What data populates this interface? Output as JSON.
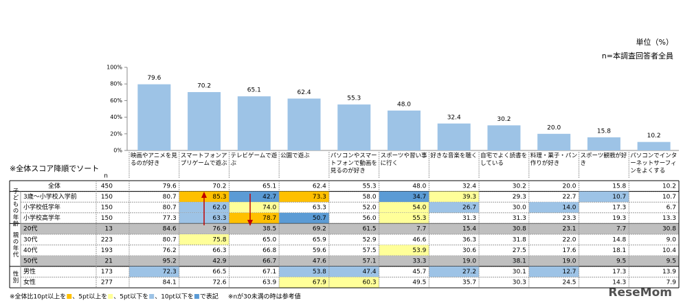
{
  "chart_data": {
    "type": "bar",
    "categories": [
      "映画やアニメを見るのが好き",
      "スマートフォンアプリゲームで遊ぶ",
      "テレビゲームで遊ぶ",
      "公園で遊ぶ",
      "パソコンやスマートフォンで動画を見るのが好き",
      "スポーツや習い事に行く",
      "好きな音楽を聴く",
      "自宅でよく読書をしている",
      "料理・菓子・パン作りが好き",
      "スポーツ観戦が好き",
      "パソコンでインターネットサーフィンをよくする"
    ],
    "values": [
      79.6,
      70.2,
      65.1,
      62.4,
      55.3,
      48.0,
      32.4,
      30.2,
      20.0,
      15.8,
      10.2
    ],
    "value_labels": [
      "79.6",
      "70.2",
      "65.1",
      "62.4",
      "55.3",
      "48.0",
      "32.4",
      "30.2",
      "20.0",
      "15.8",
      "10.2"
    ],
    "color": "#9dc3e6",
    "ylim": [
      0,
      100
    ],
    "yticks": [
      {
        "value": 0,
        "label": "0%"
      },
      {
        "value": 20,
        "label": "20%"
      },
      {
        "value": 40,
        "label": "40%"
      },
      {
        "value": 60,
        "label": "60%"
      },
      {
        "value": 80,
        "label": "80%"
      },
      {
        "value": 100,
        "label": "100%"
      }
    ]
  },
  "header": {
    "unit": "単位（%）",
    "base": "n=本調査回答者全員",
    "sort_note": "※全体スコア降順でソート",
    "n_label": "n"
  },
  "table": {
    "overall": {
      "label": "全体",
      "n": "450",
      "values": [
        "79.6",
        "70.2",
        "65.1",
        "62.4",
        "55.3",
        "48.0",
        "32.4",
        "30.2",
        "20.0",
        "15.8",
        "10.2"
      ]
    },
    "groups": [
      {
        "label": "子どもの年齢",
        "rows": [
          {
            "label": "3歳～小学校入学前",
            "n": "150",
            "values": [
              "80.7",
              "85.3",
              "42.7",
              "73.3",
              "58.0",
              "34.7",
              "39.3",
              "29.3",
              "22.7",
              "10.7",
              "10.7"
            ]
          },
          {
            "label": "小学校低学年",
            "n": "150",
            "values": [
              "80.7",
              "62.0",
              "74.0",
              "63.3",
              "52.0",
              "54.0",
              "26.7",
              "30.0",
              "14.0",
              "17.3",
              "6.7"
            ]
          },
          {
            "label": "小学校高学年",
            "n": "150",
            "values": [
              "77.3",
              "63.3",
              "78.7",
              "50.7",
              "56.0",
              "55.3",
              "31.3",
              "31.3",
              "23.3",
              "19.3",
              "13.3"
            ]
          }
        ]
      },
      {
        "label": "親の年代",
        "rows": [
          {
            "label": "20代",
            "n": "13",
            "values": [
              "84.6",
              "76.9",
              "38.5",
              "69.2",
              "61.5",
              "7.7",
              "15.4",
              "30.8",
              "23.1",
              "7.7",
              "30.8"
            ]
          },
          {
            "label": "30代",
            "n": "223",
            "values": [
              "80.7",
              "75.8",
              "65.0",
              "65.9",
              "52.9",
              "46.6",
              "36.3",
              "31.8",
              "22.0",
              "14.8",
              "9.0"
            ]
          },
          {
            "label": "40代",
            "n": "193",
            "values": [
              "76.2",
              "66.3",
              "66.8",
              "59.6",
              "57.5",
              "53.9",
              "30.6",
              "27.5",
              "17.6",
              "18.1",
              "10.4"
            ]
          },
          {
            "label": "50代",
            "n": "21",
            "values": [
              "95.2",
              "42.9",
              "66.7",
              "47.6",
              "57.1",
              "33.3",
              "19.0",
              "38.1",
              "19.0",
              "9.5",
              "9.5"
            ]
          }
        ]
      },
      {
        "label": "性別",
        "rows": [
          {
            "label": "男性",
            "n": "173",
            "values": [
              "72.3",
              "66.5",
              "67.1",
              "53.8",
              "47.4",
              "45.7",
              "27.2",
              "30.1",
              "12.7",
              "17.3",
              "13.9"
            ]
          },
          {
            "label": "女性",
            "n": "277",
            "values": [
              "84.1",
              "72.6",
              "63.9",
              "67.9",
              "60.3",
              "49.5",
              "35.7",
              "30.3",
              "24.5",
              "14.3",
              "7.9"
            ]
          }
        ]
      }
    ],
    "highlight": [
      {
        "min": 10,
        "color": "#ffc000"
      },
      {
        "min": 5,
        "color": "#ffff99"
      },
      {
        "max": -10,
        "color": "#5b9bd5"
      },
      {
        "max": -5,
        "color": "#9dc3e6"
      }
    ],
    "reference_below_n": 30,
    "reference_color": "#bfbfbf"
  },
  "notes": {
    "parts": [
      "※全体比10pt以上を",
      "、5pt以上を",
      "、5pt以下を",
      "、10pt以下を",
      "で表記"
    ],
    "reference": "※nが30未満の時は参考値"
  },
  "watermark": "ReseMom"
}
